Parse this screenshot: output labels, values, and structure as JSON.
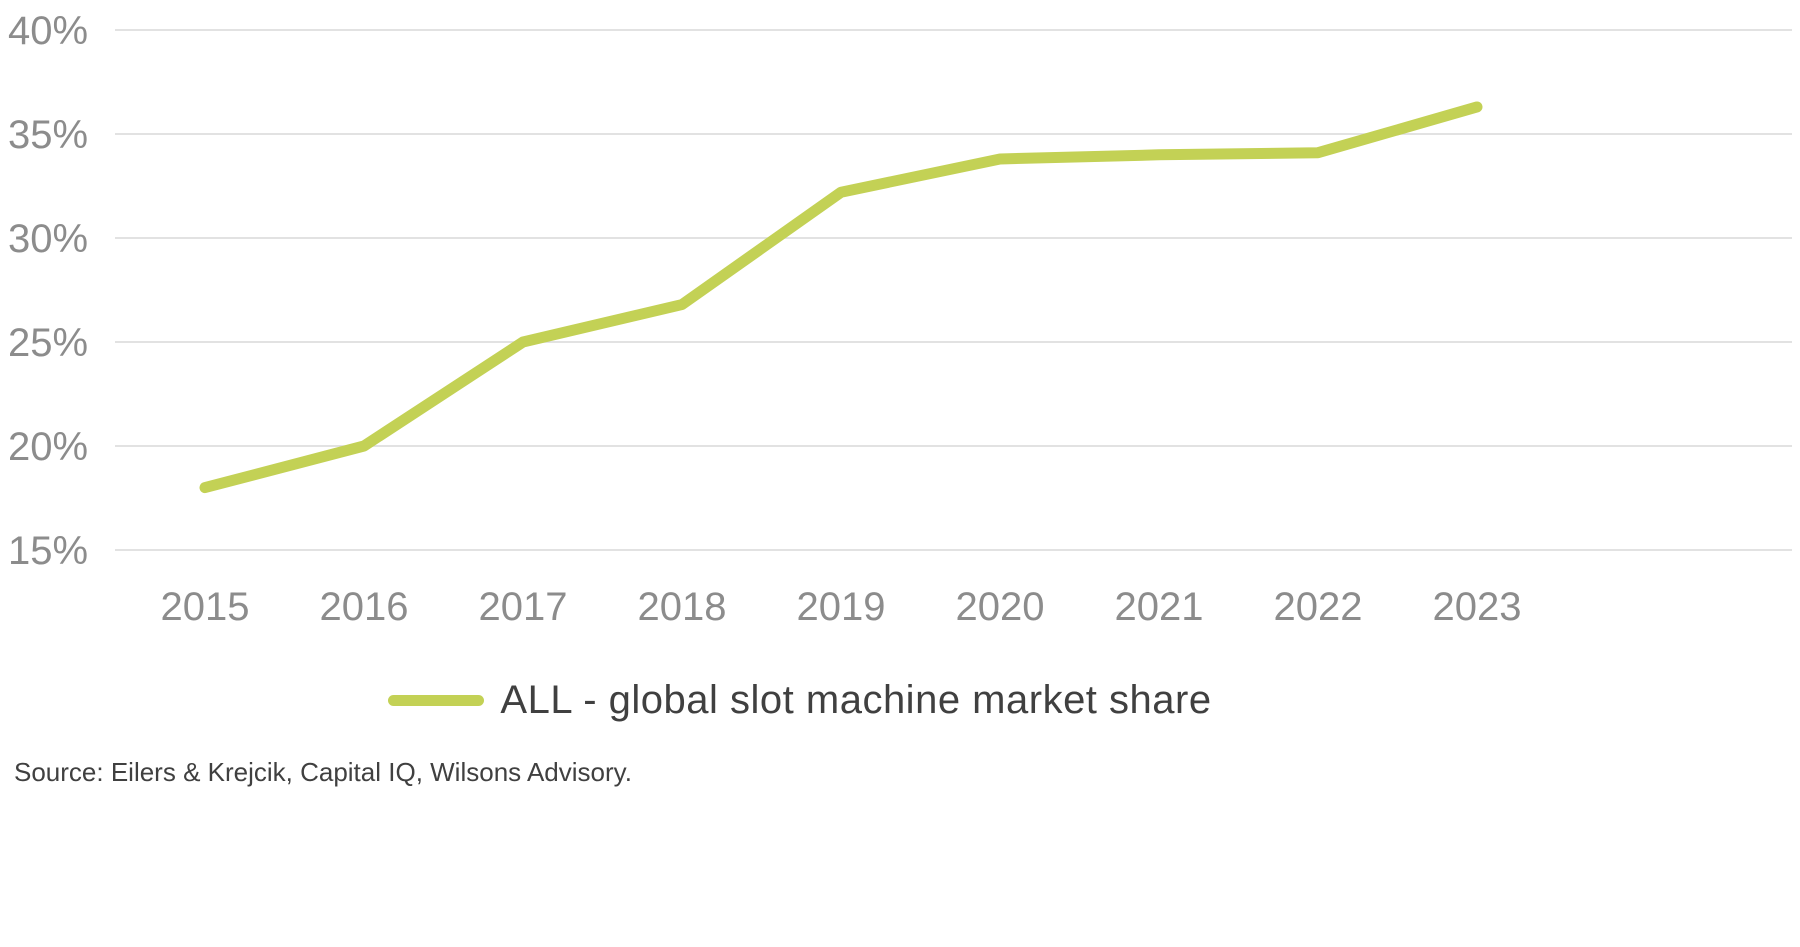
{
  "chart_data": {
    "type": "line",
    "title": "",
    "xlabel": "",
    "ylabel": "",
    "categories": [
      "2015",
      "2016",
      "2017",
      "2018",
      "2019",
      "2020",
      "2021",
      "2022",
      "2023"
    ],
    "series": [
      {
        "name": "ALL - global slot machine market share",
        "values": [
          18.0,
          20.0,
          25.0,
          26.8,
          32.2,
          33.8,
          34.0,
          34.1,
          36.3
        ]
      }
    ],
    "ylim": [
      15,
      40
    ],
    "yticks": [
      {
        "value": 40,
        "label": "40%"
      },
      {
        "value": 35,
        "label": "35%"
      },
      {
        "value": 30,
        "label": "30%"
      },
      {
        "value": 25,
        "label": "25%"
      },
      {
        "value": 20,
        "label": "20%"
      },
      {
        "value": 15,
        "label": "15%"
      }
    ],
    "grid": "horizontal",
    "legend_position": "bottom-center",
    "legend": "ALL - global slot machine market share",
    "source": "Source: Eilers & Krejcik, Capital IQ, Wilsons Advisory.",
    "colors": {
      "line": "#c3d155",
      "grid": "#d9d9d9",
      "tick_label": "#8c8c8c",
      "text": "#404040"
    }
  }
}
